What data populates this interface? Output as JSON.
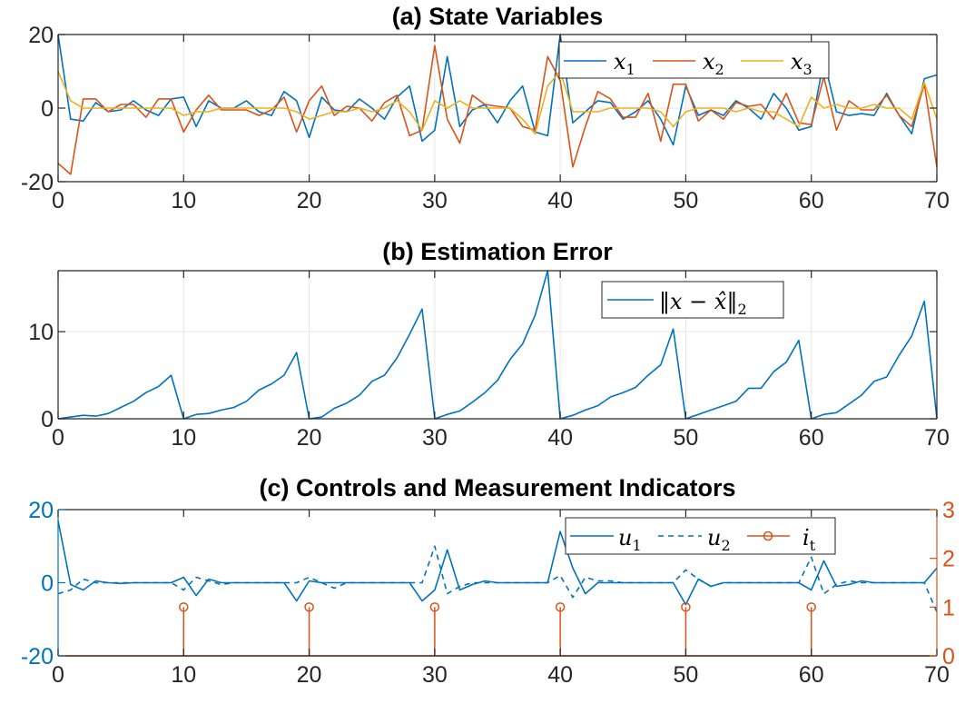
{
  "colors": {
    "blue": "#0072BD",
    "orange": "#D95319",
    "yellow": "#EDB120"
  },
  "chart_data": [
    {
      "type": "line",
      "title": "(a) State Variables",
      "xlim": [
        0,
        70
      ],
      "ylim": [
        -20,
        20
      ],
      "xticks": [
        0,
        10,
        20,
        30,
        40,
        50,
        60,
        70
      ],
      "yticks": [
        -20,
        0,
        20
      ],
      "grid": true,
      "legend_position": "top-right",
      "x": [
        0,
        1,
        2,
        3,
        4,
        5,
        6,
        7,
        8,
        9,
        10,
        11,
        12,
        13,
        14,
        15,
        16,
        17,
        18,
        19,
        20,
        21,
        22,
        23,
        24,
        25,
        26,
        27,
        28,
        29,
        30,
        31,
        32,
        33,
        34,
        35,
        36,
        37,
        38,
        39,
        40,
        41,
        42,
        43,
        44,
        45,
        46,
        47,
        48,
        49,
        50,
        51,
        52,
        53,
        54,
        55,
        56,
        57,
        58,
        59,
        60,
        61,
        62,
        63,
        64,
        65,
        66,
        67,
        68,
        69,
        70
      ],
      "series": [
        {
          "name": "x_1",
          "label_main": "x",
          "label_sub": "1",
          "color": "#0072BD",
          "values": [
            20,
            -3,
            -3.5,
            1.5,
            -1,
            -0.5,
            2,
            -0.5,
            -2,
            2.5,
            3,
            -5,
            2,
            0,
            0,
            2,
            -1,
            -2,
            4.5,
            2,
            -8,
            3,
            -0.5,
            -1,
            2.5,
            0,
            -3,
            3,
            6,
            -9,
            -6,
            14,
            -5,
            -0.5,
            1,
            -4,
            2,
            6,
            -6.5,
            -7.5,
            20,
            -4,
            -1,
            2,
            1.5,
            -3,
            -1,
            2,
            -3,
            -10,
            6,
            -2,
            -0.5,
            -2,
            2,
            0,
            -3,
            4,
            0,
            -6,
            -5,
            13,
            -1,
            -2,
            -1.5,
            -2,
            4,
            -2,
            -7,
            8,
            9
          ]
        },
        {
          "name": "x_2",
          "label_main": "x",
          "label_sub": "2",
          "color": "#D95319",
          "values": [
            -15,
            -18,
            2.5,
            2.5,
            -1,
            1,
            1,
            -2.5,
            2.5,
            2.5,
            -6.5,
            -0.5,
            3.5,
            -0.5,
            -0.5,
            -0.5,
            -2,
            -0.5,
            3,
            -6.5,
            2,
            6,
            -2,
            0.5,
            0,
            -3.5,
            1.5,
            3.5,
            -7.5,
            -6,
            17,
            -3,
            -9.5,
            3.5,
            1,
            0.5,
            0,
            -5,
            -6,
            14,
            7.5,
            -16,
            -5,
            4.5,
            2.5,
            -2.5,
            -2.5,
            4,
            -9,
            6.5,
            6.5,
            -3.5,
            -0.5,
            -3,
            1.5,
            0.5,
            1,
            -3,
            4,
            -4,
            -4.5,
            8.5,
            -6,
            2,
            -0.5,
            -0.5,
            3.5,
            -2,
            -5,
            6.5,
            -16
          ]
        },
        {
          "name": "x_3",
          "label_main": "x",
          "label_sub": "3",
          "color": "#EDB120",
          "values": [
            10,
            2,
            0,
            0,
            0,
            0,
            0,
            0,
            0,
            0,
            -2,
            -1,
            -1,
            0,
            0,
            0,
            0,
            0,
            0,
            -1,
            -3,
            -2,
            -1,
            -1,
            0,
            -1,
            0,
            2,
            -1,
            -6,
            2,
            0,
            2,
            0,
            0,
            0,
            0,
            -3,
            -7,
            6,
            10,
            -1,
            -1,
            -1,
            0,
            0,
            0,
            0,
            -1,
            -5,
            -1,
            0,
            0,
            0,
            -1,
            0,
            -1,
            -1,
            -3,
            -5,
            3,
            0,
            1,
            0,
            0,
            1,
            0,
            0,
            -3,
            7,
            -3
          ]
        }
      ]
    },
    {
      "type": "line",
      "title": "(b) Estimation Error",
      "xlim": [
        0,
        70
      ],
      "ylim": [
        0,
        17
      ],
      "xticks": [
        0,
        10,
        20,
        30,
        40,
        50,
        60,
        70
      ],
      "yticks": [
        0,
        10
      ],
      "grid": true,
      "legend_position": "top-right",
      "x": [
        0,
        1,
        2,
        3,
        4,
        5,
        6,
        7,
        8,
        9,
        10,
        11,
        12,
        13,
        14,
        15,
        16,
        17,
        18,
        19,
        20,
        21,
        22,
        23,
        24,
        25,
        26,
        27,
        28,
        29,
        30,
        31,
        32,
        33,
        34,
        35,
        36,
        37,
        38,
        39,
        40,
        41,
        42,
        43,
        44,
        45,
        46,
        47,
        48,
        49,
        50,
        51,
        52,
        53,
        54,
        55,
        56,
        57,
        58,
        59,
        60,
        61,
        62,
        63,
        64,
        65,
        66,
        67,
        68,
        69,
        70
      ],
      "series": [
        {
          "name": "||x - x̂||_2",
          "label_main": "‖x − x̂‖",
          "label_sub": "2",
          "color": "#0072BD",
          "values": [
            0,
            0.2,
            0.4,
            0.3,
            0.6,
            1.3,
            2,
            3,
            3.7,
            5,
            0,
            0.5,
            0.6,
            1,
            1.3,
            2,
            3.3,
            4,
            5,
            7.6,
            0,
            0.2,
            1.2,
            1.8,
            2.7,
            4.3,
            5,
            7,
            9.7,
            12.6,
            0,
            0.5,
            0.9,
            1.9,
            3,
            4.4,
            6.8,
            8.6,
            11.9,
            17,
            0,
            0.4,
            1,
            1.5,
            2.5,
            3,
            3.6,
            5,
            6.2,
            10.3,
            0,
            0.5,
            1,
            1.5,
            2,
            3.5,
            3.5,
            5.4,
            6.5,
            9,
            0,
            0.5,
            0.7,
            1.7,
            2.7,
            4.3,
            4.8,
            7.3,
            9.5,
            13.5,
            0
          ]
        }
      ]
    },
    {
      "type": "line",
      "title": "(c) Controls and Measurement Indicators",
      "xlim": [
        0,
        70
      ],
      "ylim": [
        -20,
        20
      ],
      "y2lim": [
        0,
        3
      ],
      "xticks": [
        0,
        10,
        20,
        30,
        40,
        50,
        60,
        70
      ],
      "yticks": [
        -20,
        0,
        20
      ],
      "y2ticks": [
        0,
        1,
        2,
        3
      ],
      "grid": false,
      "legend_position": "top-right",
      "x": [
        0,
        1,
        2,
        3,
        4,
        5,
        6,
        7,
        8,
        9,
        10,
        11,
        12,
        13,
        14,
        15,
        16,
        17,
        18,
        19,
        20,
        21,
        22,
        23,
        24,
        25,
        26,
        27,
        28,
        29,
        30,
        31,
        32,
        33,
        34,
        35,
        36,
        37,
        38,
        39,
        40,
        41,
        42,
        43,
        44,
        45,
        46,
        47,
        48,
        49,
        50,
        51,
        52,
        53,
        54,
        55,
        56,
        57,
        58,
        59,
        60,
        61,
        62,
        63,
        64,
        65,
        66,
        67,
        68,
        69,
        70
      ],
      "series": [
        {
          "name": "u_1",
          "label_main": "u",
          "label_sub": "1",
          "color": "#0072BD",
          "style": "solid",
          "axis": "left",
          "values": [
            17,
            -0.5,
            -2,
            0.5,
            0,
            -0.2,
            0,
            0,
            0,
            0,
            1.5,
            -3.5,
            1,
            0,
            0,
            0,
            0,
            0,
            0,
            -5,
            0.5,
            0,
            0,
            0,
            0,
            0,
            0,
            0,
            0,
            -5,
            -2,
            9,
            -2,
            -0.5,
            0.5,
            0,
            0,
            0,
            0,
            0,
            14,
            4,
            -3,
            0,
            0,
            0,
            0,
            0,
            0,
            0,
            -6,
            1,
            -1,
            0,
            0,
            0,
            0,
            0,
            0,
            0,
            -2,
            6,
            -1,
            -0.5,
            0.5,
            0,
            0,
            0,
            0,
            0,
            4
          ]
        },
        {
          "name": "u_2",
          "label_main": "u",
          "label_sub": "2",
          "color": "#0072BD",
          "style": "dashed",
          "axis": "left",
          "values": [
            -3,
            -2,
            1,
            0,
            0,
            0,
            0,
            0,
            0,
            0,
            -2,
            1.5,
            0.5,
            -0.5,
            0,
            0,
            0,
            0,
            0,
            0,
            1.5,
            0,
            -1.5,
            0,
            0,
            0,
            0,
            0,
            0,
            0,
            10,
            -3,
            -1,
            0,
            0,
            0,
            0,
            0,
            0,
            0,
            2,
            -4,
            1.5,
            0.5,
            0.5,
            0,
            0,
            0,
            0,
            0,
            3.5,
            1,
            -1,
            0,
            0,
            0,
            0,
            0,
            0,
            0,
            7,
            -3,
            -0.5,
            0.5,
            0,
            0,
            0,
            0,
            0,
            0,
            -8
          ]
        },
        {
          "name": "i_t",
          "label_main": "i",
          "label_sub": "t",
          "color": "#D95319",
          "style": "stem",
          "axis": "right",
          "x": [
            10,
            20,
            30,
            40,
            50,
            60
          ],
          "values": [
            1,
            1,
            1,
            1,
            1,
            1
          ]
        }
      ]
    }
  ]
}
